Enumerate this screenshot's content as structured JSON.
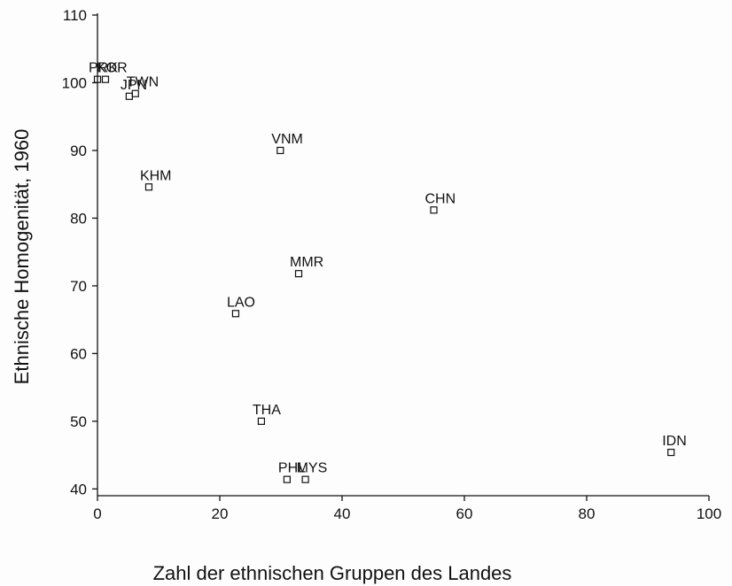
{
  "chart_data": {
    "type": "scatter",
    "x_label": "Zahl der ethnischen Gruppen des Landes",
    "y_label": "Ethnische Homogenität, 1960",
    "xlim": [
      0,
      100
    ],
    "xticks": [
      0,
      20,
      40,
      60,
      80,
      100
    ],
    "ylim": [
      39,
      110
    ],
    "yticks": [
      40,
      50,
      60,
      70,
      80,
      90,
      100,
      110
    ],
    "series": [
      {
        "color": "#111111",
        "labels": [
          "PRK",
          "KOR",
          "JPN",
          "TWN",
          "VNM",
          "KHM",
          "CHN",
          "MMR",
          "LAO",
          "THA",
          "PHL",
          "MYS",
          "IDN"
        ],
        "x": [
          0,
          1.3,
          5.2,
          6.2,
          29.9,
          8.4,
          55,
          32.9,
          22.6,
          26.8,
          31,
          34,
          93.8
        ],
        "values": [
          100.5,
          100.5,
          98,
          98.4,
          90,
          84.6,
          81.2,
          71.8,
          65.9,
          50,
          41.4,
          41.4,
          45.4
        ]
      }
    ]
  }
}
